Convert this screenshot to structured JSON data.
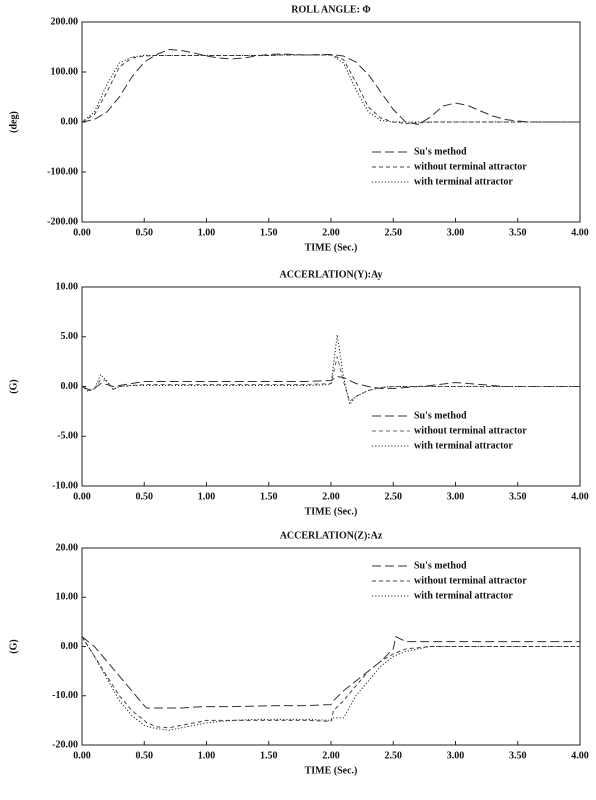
{
  "chart_data": [
    {
      "type": "line",
      "title": "ROLL ANGLE: Φ",
      "x_label": "TIME (Sec.)",
      "y_label": "(deg)",
      "x": [
        0,
        0.1,
        0.2,
        0.3,
        0.4,
        0.5,
        0.6,
        0.7,
        0.8,
        0.9,
        1.0,
        1.1,
        1.2,
        1.3,
        1.4,
        1.5,
        1.6,
        1.7,
        1.8,
        1.9,
        2.0,
        2.1,
        2.2,
        2.3,
        2.4,
        2.5,
        2.6,
        2.7,
        2.8,
        2.9,
        3.0,
        3.1,
        3.2,
        3.3,
        3.4,
        3.5,
        3.6,
        3.7,
        3.8,
        3.9,
        4.0
      ],
      "series": [
        {
          "name": "Su's method",
          "color": "#333333",
          "linestyle": "dashed",
          "values": [
            0,
            5,
            20,
            50,
            90,
            120,
            135,
            145,
            143,
            138,
            132,
            128,
            126,
            128,
            132,
            135,
            136,
            135,
            134,
            135,
            135,
            132,
            120,
            95,
            60,
            25,
            0,
            -5,
            10,
            32,
            38,
            33,
            22,
            12,
            5,
            2,
            0,
            0,
            0,
            0,
            0
          ]
        },
        {
          "name": "without terminal attractor",
          "color": "#444444",
          "linestyle": "short dashed",
          "values": [
            0,
            15,
            60,
            110,
            128,
            132,
            133,
            133,
            133,
            133,
            133,
            133,
            133,
            133,
            133,
            133,
            134,
            134,
            134,
            134,
            134,
            125,
            80,
            30,
            8,
            0,
            -3,
            -2,
            0,
            0,
            0,
            0,
            0,
            0,
            0,
            0,
            0,
            0,
            0,
            0,
            0
          ]
        },
        {
          "name": "with terminal attractor",
          "color": "#222222",
          "linestyle": "dotted",
          "values": [
            0,
            20,
            75,
            118,
            130,
            133,
            133,
            133,
            133,
            133,
            133,
            133,
            133,
            133,
            133,
            133,
            134,
            134,
            134,
            134,
            134,
            118,
            65,
            20,
            3,
            0,
            0,
            0,
            0,
            0,
            0,
            0,
            0,
            0,
            0,
            0,
            0,
            0,
            0,
            0,
            0
          ]
        }
      ],
      "xlim": [
        0,
        4
      ],
      "ylim": [
        -200,
        200
      ],
      "xticks": [
        {
          "value": 0,
          "label": "0.00"
        },
        {
          "value": 0.5,
          "label": "0.50"
        },
        {
          "value": 1,
          "label": "1.00"
        },
        {
          "value": 1.5,
          "label": "1.50"
        },
        {
          "value": 2,
          "label": "2.00"
        },
        {
          "value": 2.5,
          "label": "2.50"
        },
        {
          "value": 3,
          "label": "3.00"
        },
        {
          "value": 3.5,
          "label": "3.50"
        },
        {
          "value": 4,
          "label": "4.00"
        }
      ],
      "yticks": [
        {
          "value": -200,
          "label": "-200.00"
        },
        {
          "value": -100,
          "label": "-100.00"
        },
        {
          "value": 0,
          "label": "0.00"
        },
        {
          "value": 100,
          "label": "100.00"
        },
        {
          "value": 200,
          "label": "200.00"
        }
      ],
      "legend": "lower right"
    },
    {
      "type": "line",
      "title": "ACCERLATION(Y):Ay",
      "x_label": "TIME (Sec.)",
      "y_label": "(G)",
      "x": [
        0,
        0.05,
        0.1,
        0.15,
        0.2,
        0.25,
        0.3,
        0.4,
        0.5,
        0.6,
        0.8,
        1.0,
        1.2,
        1.4,
        1.6,
        1.8,
        2.0,
        2.05,
        2.1,
        2.15,
        2.2,
        2.3,
        2.4,
        2.5,
        2.6,
        2.8,
        3.0,
        3.2,
        3.4,
        3.6,
        3.8,
        4.0
      ],
      "series": [
        {
          "name": "Su's method",
          "color": "#333333",
          "linestyle": "dashed",
          "values": [
            0,
            -0.3,
            -0.2,
            0.3,
            0.2,
            0,
            0.1,
            0.3,
            0.5,
            0.5,
            0.5,
            0.5,
            0.5,
            0.5,
            0.5,
            0.5,
            0.6,
            1.0,
            0.9,
            0.6,
            0.3,
            0,
            -0.2,
            -0.2,
            -0.1,
            0.1,
            0.4,
            0.2,
            0,
            0,
            0,
            0
          ]
        },
        {
          "name": "without terminal attractor",
          "color": "#666666",
          "linestyle": "short dashed",
          "values": [
            0,
            -0.4,
            -0.3,
            0.7,
            0.6,
            -0.3,
            0,
            0.1,
            0.2,
            0.2,
            0.2,
            0.2,
            0.2,
            0.2,
            0.2,
            0.2,
            0.3,
            3.0,
            0.5,
            -1.5,
            -1.0,
            -0.4,
            -0.1,
            0,
            0,
            0,
            0,
            0,
            0,
            0,
            0,
            0
          ]
        },
        {
          "name": "with terminal attractor",
          "color": "#222222",
          "linestyle": "dotted",
          "values": [
            0,
            -0.5,
            -0.2,
            1.2,
            0.5,
            -0.3,
            0,
            0.1,
            0.1,
            0.1,
            0.1,
            0.1,
            0.1,
            0.1,
            0.1,
            0.1,
            0.2,
            5.2,
            1.0,
            -1.8,
            -1.0,
            -0.4,
            -0.1,
            0,
            0,
            0,
            0,
            0,
            0,
            0,
            0,
            0
          ]
        }
      ],
      "xlim": [
        0,
        4
      ],
      "ylim": [
        -10,
        10
      ],
      "xticks": [
        {
          "value": 0,
          "label": "0.00"
        },
        {
          "value": 0.5,
          "label": "0.50"
        },
        {
          "value": 1,
          "label": "1.00"
        },
        {
          "value": 1.5,
          "label": "1.50"
        },
        {
          "value": 2,
          "label": "2.00"
        },
        {
          "value": 2.5,
          "label": "2.50"
        },
        {
          "value": 3,
          "label": "3.00"
        },
        {
          "value": 3.5,
          "label": "3.50"
        },
        {
          "value": 4,
          "label": "4.00"
        }
      ],
      "yticks": [
        {
          "value": -10,
          "label": "-10.00"
        },
        {
          "value": -5,
          "label": "-5.00"
        },
        {
          "value": 0,
          "label": "0.00"
        },
        {
          "value": 5,
          "label": "5.00"
        },
        {
          "value": 10,
          "label": "10.00"
        }
      ],
      "legend": "lower right"
    },
    {
      "type": "line",
      "title": "ACCERLATION(Z):Az",
      "x_label": "TIME (Sec.)",
      "y_label": "(G)",
      "x": [
        0,
        0.1,
        0.2,
        0.3,
        0.4,
        0.5,
        0.52,
        0.6,
        0.7,
        0.8,
        0.9,
        1.0,
        1.2,
        1.4,
        1.6,
        1.8,
        2.0,
        2.02,
        2.1,
        2.2,
        2.3,
        2.4,
        2.5,
        2.52,
        2.6,
        2.8,
        3.0,
        3.5,
        4.0
      ],
      "series": [
        {
          "name": "Su's method",
          "color": "#333333",
          "linestyle": "dashed",
          "values": [
            2,
            0,
            -3,
            -6,
            -9,
            -12,
            -12.5,
            -12.5,
            -12.5,
            -12.5,
            -12.3,
            -12.2,
            -12.2,
            -12.1,
            -12,
            -12,
            -11.8,
            -11,
            -9,
            -7,
            -5,
            -3,
            -0.5,
            2,
            1,
            1,
            1,
            1,
            1
          ]
        },
        {
          "name": "without terminal attractor",
          "color": "#444444",
          "linestyle": "short dashed",
          "values": [
            2,
            -2,
            -6,
            -10,
            -13,
            -15,
            -15.5,
            -16.3,
            -16.5,
            -16,
            -15.5,
            -15,
            -15,
            -15,
            -15,
            -15,
            -15.2,
            -13,
            -11,
            -8,
            -5,
            -3,
            -1.5,
            -1.3,
            -0.5,
            0,
            0,
            0,
            0
          ]
        },
        {
          "name": "with terminal attractor",
          "color": "#222222",
          "linestyle": "dotted",
          "values": [
            2,
            -2,
            -6.5,
            -11,
            -14,
            -16,
            -16.2,
            -16.7,
            -17,
            -16.5,
            -16,
            -15.5,
            -15,
            -14.8,
            -14.8,
            -14.8,
            -15,
            -14.5,
            -14.5,
            -10,
            -7,
            -4,
            -2,
            -1.8,
            -1,
            0,
            0,
            0,
            0
          ]
        }
      ],
      "xlim": [
        0,
        4
      ],
      "ylim": [
        -20,
        20
      ],
      "xticks": [
        {
          "value": 0,
          "label": "0.00"
        },
        {
          "value": 0.5,
          "label": "0.50"
        },
        {
          "value": 1,
          "label": "1.00"
        },
        {
          "value": 1.5,
          "label": "1.50"
        },
        {
          "value": 2,
          "label": "2.00"
        },
        {
          "value": 2.5,
          "label": "2.50"
        },
        {
          "value": 3,
          "label": "3.00"
        },
        {
          "value": 3.5,
          "label": "3.50"
        },
        {
          "value": 4,
          "label": "4.00"
        }
      ],
      "yticks": [
        {
          "value": -20,
          "label": "-20.00"
        },
        {
          "value": -10,
          "label": "-10.00"
        },
        {
          "value": 0,
          "label": "0.00"
        },
        {
          "value": 10,
          "label": "10.00"
        },
        {
          "value": 20,
          "label": "20.00"
        }
      ],
      "legend": "upper right"
    }
  ]
}
